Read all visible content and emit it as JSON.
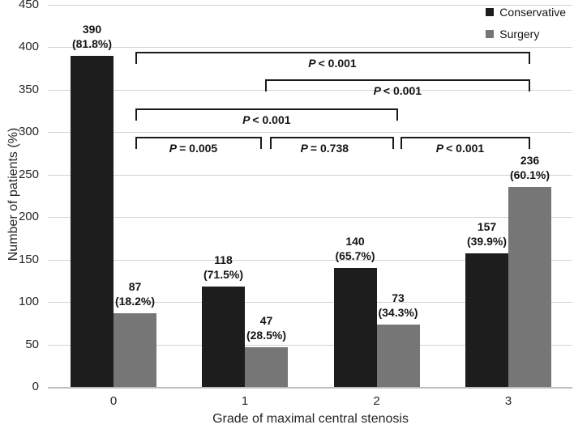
{
  "chart_data": {
    "type": "bar",
    "title": "",
    "xlabel": "Grade of maximal central stenosis",
    "ylabel": "Number of patients (%)",
    "ylim": [
      0,
      450
    ],
    "yticks": [
      0,
      50,
      100,
      150,
      200,
      250,
      300,
      350,
      400,
      450
    ],
    "grid": true,
    "legend_position": "top-right",
    "categories": [
      "0",
      "1",
      "2",
      "3"
    ],
    "series": [
      {
        "name": "Conservative",
        "color": "#1d1d1d",
        "values": [
          390,
          118,
          140,
          157
        ],
        "pct_labels": [
          "(81.8%)",
          "(71.5%)",
          "(65.7%)",
          "(39.9%)"
        ]
      },
      {
        "name": "Surgery",
        "color": "#767676",
        "values": [
          87,
          47,
          73,
          236
        ],
        "pct_labels": [
          "(18.2%)",
          "(28.5%)",
          "(34.3%)",
          "(60.1%)"
        ]
      }
    ],
    "comparisons": [
      {
        "from": 0,
        "to": 3,
        "p_symbol": "P",
        "p_text": "< 0.001",
        "level": 1
      },
      {
        "from": 1,
        "to": 3,
        "p_symbol": "P",
        "p_text": "< 0.001",
        "level": 2
      },
      {
        "from": 0,
        "to": 2,
        "p_symbol": "P",
        "p_text": "< 0.001",
        "level": 3
      },
      {
        "from": 0,
        "to": 1,
        "p_symbol": "P",
        "p_text": "= 0.005",
        "level": 4
      },
      {
        "from": 1,
        "to": 2,
        "p_symbol": "P",
        "p_text": "= 0.738",
        "level": 4
      },
      {
        "from": 2,
        "to": 3,
        "p_symbol": "P",
        "p_text": "< 0.001",
        "level": 4
      }
    ]
  },
  "colors": {
    "conservative": "#1d1d1d",
    "surgery": "#767676",
    "gridline": "#d2d2d2",
    "axis_line": "#bdbdbd",
    "bracket": "#1a1a1a"
  },
  "legend": {
    "items": [
      {
        "label": "Conservative",
        "color": "#1d1d1d"
      },
      {
        "label": "Surgery",
        "color": "#767676"
      }
    ]
  }
}
